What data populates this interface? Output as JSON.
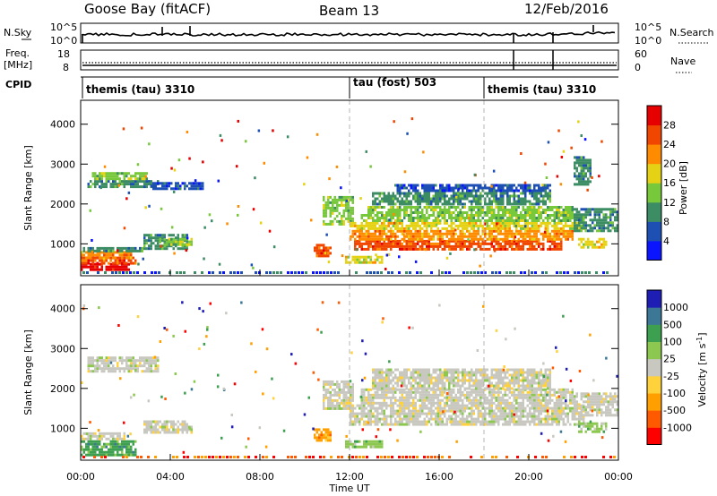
{
  "header": {
    "station": "Goose Bay (fitACF)",
    "beam": "Beam 13",
    "date": "12/Feb/2016"
  },
  "noise_panel": {
    "left_label": "N.Sky",
    "left_ticks": [
      "10^5",
      "10^0"
    ],
    "right_label": "N.Search",
    "right_ticks": [
      "10^5",
      "10^0"
    ]
  },
  "freq_panel": {
    "left_label_1": "Freq.",
    "left_label_2": "[MHz]",
    "left_ticks": [
      "18",
      "8"
    ],
    "right_label": "Nave",
    "right_ticks": [
      "60",
      "0"
    ]
  },
  "cpid_panel": {
    "label": "CPID",
    "modes": [
      {
        "text": "themis (tau) 3310",
        "start_hour": 0
      },
      {
        "text": "tau (fost) 503",
        "start_hour": 12
      },
      {
        "text": "themis (tau) 3310",
        "start_hour": 18
      }
    ]
  },
  "colors": {
    "power": [
      "#0a14ff",
      "#1e50b4",
      "#3c8c64",
      "#78c83c",
      "#e6d214",
      "#ff8c00",
      "#f04600",
      "#e60000"
    ],
    "velocity": [
      "#ff0000",
      "#ff5a00",
      "#ffa000",
      "#ffd23c",
      "#c8c8c0",
      "#8cc850",
      "#3ca050",
      "#3c7896",
      "#1e1eb4"
    ]
  },
  "chart_data": [
    {
      "type": "heatmap",
      "name": "power",
      "x_range_hours": [
        0,
        24
      ],
      "ylabel": "Slant Range [km]",
      "ylim": [
        200,
        4600
      ],
      "yticks": [
        1000,
        2000,
        3000,
        4000
      ],
      "colorbar_label": "Power [dB]",
      "colorbar_ticks": [
        "4",
        "8",
        "12",
        "16",
        "20",
        "24",
        "28"
      ],
      "bands": [
        {
          "t0": 0.0,
          "t1": 2.2,
          "r0": 350,
          "r1": 520,
          "c": 7
        },
        {
          "t0": 0.0,
          "t1": 2.5,
          "r0": 520,
          "r1": 680,
          "c": 6
        },
        {
          "t0": 0.0,
          "t1": 2.3,
          "r0": 680,
          "r1": 820,
          "c": 5
        },
        {
          "t0": 0.1,
          "t1": 2.8,
          "r0": 820,
          "r1": 920,
          "c": 2
        },
        {
          "t0": 0.3,
          "t1": 3.5,
          "r0": 2400,
          "r1": 2600,
          "c": 2
        },
        {
          "t0": 0.5,
          "t1": 3.0,
          "r0": 2600,
          "r1": 2800,
          "c": 3
        },
        {
          "t0": 3.0,
          "t1": 5.5,
          "r0": 2400,
          "r1": 2550,
          "c": 1
        },
        {
          "t0": 2.8,
          "t1": 4.8,
          "r0": 900,
          "r1": 1250,
          "c": 2
        },
        {
          "t0": 3.5,
          "t1": 5.0,
          "r0": 1000,
          "r1": 1150,
          "c": 3
        },
        {
          "t0": 10.4,
          "t1": 11.2,
          "r0": 700,
          "r1": 1000,
          "c": 6
        },
        {
          "t0": 10.8,
          "t1": 12.2,
          "r0": 1500,
          "r1": 2200,
          "c": 3
        },
        {
          "t0": 11.8,
          "t1": 13.5,
          "r0": 500,
          "r1": 700,
          "c": 4
        },
        {
          "t0": 12.2,
          "t1": 21.5,
          "r0": 850,
          "r1": 1100,
          "c": 6
        },
        {
          "t0": 12.0,
          "t1": 22.0,
          "r0": 1100,
          "r1": 1350,
          "c": 5
        },
        {
          "t0": 12.0,
          "t1": 22.5,
          "r0": 1350,
          "r1": 1550,
          "c": 4
        },
        {
          "t0": 12.5,
          "t1": 22.5,
          "r0": 1550,
          "r1": 1750,
          "c": 3
        },
        {
          "t0": 12.8,
          "t1": 22.0,
          "r0": 1750,
          "r1": 1950,
          "c": 3
        },
        {
          "t0": 13.0,
          "t1": 21.0,
          "r0": 2000,
          "r1": 2300,
          "c": 2
        },
        {
          "t0": 14.0,
          "t1": 21.0,
          "r0": 2300,
          "r1": 2500,
          "c": 1
        },
        {
          "t0": 22.0,
          "t1": 24.0,
          "r0": 1300,
          "r1": 1900,
          "c": 2
        },
        {
          "t0": 22.2,
          "t1": 23.5,
          "r0": 900,
          "r1": 1150,
          "c": 4
        },
        {
          "t0": 22.0,
          "t1": 22.8,
          "r0": 2500,
          "r1": 3200,
          "c": 2
        }
      ]
    },
    {
      "type": "heatmap",
      "name": "velocity",
      "x_range_hours": [
        0,
        24
      ],
      "xlabel": "Time UT",
      "xticks": [
        "00:00",
        "04:00",
        "08:00",
        "12:00",
        "16:00",
        "20:00",
        "00:00"
      ],
      "ylabel": "Slant Range [km]",
      "ylim": [
        200,
        4600
      ],
      "yticks": [
        1000,
        2000,
        3000,
        4000
      ],
      "colorbar_label": "Velocity [m s^-1]",
      "colorbar_ticks": [
        "-1000",
        "-500",
        "-100",
        "-25",
        "25",
        "100",
        "500",
        "1000"
      ],
      "bands": [
        {
          "t0": 0.0,
          "t1": 2.5,
          "r0": 350,
          "r1": 700,
          "c": 6
        },
        {
          "t0": 0.0,
          "t1": 2.0,
          "r0": 700,
          "r1": 900,
          "c": 4
        },
        {
          "t0": 0.3,
          "t1": 3.5,
          "r0": 2400,
          "r1": 2800,
          "c": 4
        },
        {
          "t0": 2.8,
          "t1": 5.0,
          "r0": 900,
          "r1": 1200,
          "c": 4
        },
        {
          "t0": 10.4,
          "t1": 11.2,
          "r0": 700,
          "r1": 1000,
          "c": 2
        },
        {
          "t0": 10.8,
          "t1": 12.2,
          "r0": 1500,
          "r1": 2200,
          "c": 4
        },
        {
          "t0": 11.8,
          "t1": 13.5,
          "r0": 500,
          "r1": 700,
          "c": 5
        },
        {
          "t0": 12.0,
          "t1": 22.5,
          "r0": 1100,
          "r1": 1600,
          "c": 4
        },
        {
          "t0": 12.5,
          "t1": 22.0,
          "r0": 1600,
          "r1": 2000,
          "c": 4
        },
        {
          "t0": 13.0,
          "t1": 21.0,
          "r0": 2000,
          "r1": 2500,
          "c": 4
        },
        {
          "t0": 22.0,
          "t1": 24.0,
          "r0": 1300,
          "r1": 1900,
          "c": 4
        },
        {
          "t0": 22.2,
          "t1": 23.5,
          "r0": 900,
          "r1": 1150,
          "c": 5
        }
      ]
    }
  ]
}
